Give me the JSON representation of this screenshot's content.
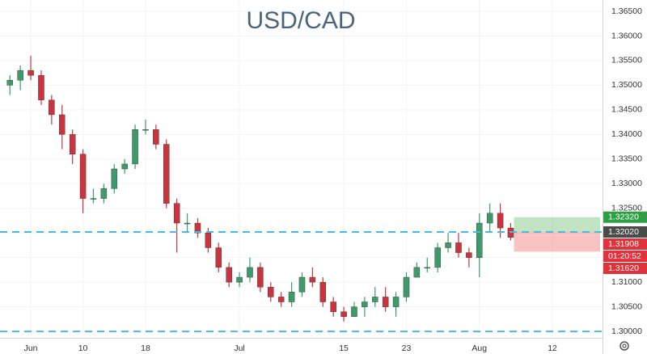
{
  "chart_data": {
    "type": "candlestick",
    "title": "USD/CAD",
    "open": [
      1.35,
      1.351,
      1.353,
      1.352,
      1.347,
      1.344,
      1.34,
      1.336,
      1.327,
      1.327,
      1.329,
      1.333,
      1.334,
      1.341,
      1.341,
      1.338,
      1.326,
      1.322,
      1.322,
      1.32,
      1.317,
      1.313,
      1.31,
      1.311,
      1.313,
      1.309,
      1.307,
      1.306,
      1.308,
      1.311,
      1.31,
      1.306,
      1.304,
      1.303,
      1.305,
      1.306,
      1.307,
      1.305,
      1.307,
      1.311,
      1.313,
      1.313,
      1.317,
      1.318,
      1.316,
      1.315,
      1.322,
      1.324,
      1.321
    ],
    "high": [
      1.352,
      1.354,
      1.356,
      1.353,
      1.348,
      1.346,
      1.341,
      1.337,
      1.329,
      1.33,
      1.334,
      1.335,
      1.342,
      1.343,
      1.342,
      1.339,
      1.327,
      1.324,
      1.323,
      1.321,
      1.318,
      1.314,
      1.312,
      1.315,
      1.314,
      1.31,
      1.308,
      1.31,
      1.312,
      1.313,
      1.311,
      1.307,
      1.305,
      1.306,
      1.307,
      1.309,
      1.309,
      1.308,
      1.312,
      1.314,
      1.315,
      1.318,
      1.32,
      1.32,
      1.317,
      1.324,
      1.326,
      1.326,
      1.322
    ],
    "low": [
      1.348,
      1.349,
      1.351,
      1.346,
      1.342,
      1.337,
      1.334,
      1.324,
      1.326,
      1.326,
      1.328,
      1.332,
      1.333,
      1.34,
      1.337,
      1.325,
      1.316,
      1.32,
      1.319,
      1.316,
      1.312,
      1.309,
      1.309,
      1.31,
      1.308,
      1.306,
      1.305,
      1.305,
      1.307,
      1.309,
      1.305,
      1.303,
      1.302,
      1.303,
      1.303,
      1.305,
      1.304,
      1.303,
      1.306,
      1.311,
      1.312,
      1.312,
      1.316,
      1.315,
      1.313,
      1.311,
      1.32,
      1.319,
      1.3185
    ],
    "close": [
      1.351,
      1.353,
      1.352,
      1.347,
      1.344,
      1.34,
      1.336,
      1.327,
      1.327,
      1.329,
      1.333,
      1.334,
      1.341,
      1.341,
      1.338,
      1.326,
      1.322,
      1.322,
      1.32,
      1.317,
      1.313,
      1.31,
      1.311,
      1.313,
      1.309,
      1.307,
      1.306,
      1.308,
      1.311,
      1.31,
      1.306,
      1.304,
      1.303,
      1.305,
      1.306,
      1.307,
      1.305,
      1.307,
      1.311,
      1.313,
      1.313,
      1.317,
      1.318,
      1.316,
      1.315,
      1.322,
      1.324,
      1.321,
      1.3191
    ],
    "up_color": "#3d9a6b",
    "down_color": "#c9343f",
    "xlim": [
      -0.95,
      56.8
    ],
    "xticks": [
      {
        "value": 2,
        "label": "Jun"
      },
      {
        "value": 7,
        "label": "10"
      },
      {
        "value": 13,
        "label": "18"
      },
      {
        "value": 22,
        "label": "Jul"
      },
      {
        "value": 32,
        "label": "15"
      },
      {
        "value": 38,
        "label": "23"
      },
      {
        "value": 45,
        "label": "Aug"
      },
      {
        "value": 52,
        "label": "12"
      }
    ],
    "ylim": [
      1.2987,
      1.3673
    ],
    "yticks": [
      {
        "value": 1.3,
        "label": "1.30000"
      },
      {
        "value": 1.305,
        "label": "1.30500"
      },
      {
        "value": 1.31,
        "label": "1.31000"
      },
      {
        "value": 1.315,
        "label": "1.31500"
      },
      {
        "value": 1.32,
        "label": "1.32000"
      },
      {
        "value": 1.325,
        "label": "1.32500"
      },
      {
        "value": 1.33,
        "label": "1.33000"
      },
      {
        "value": 1.335,
        "label": "1.33500"
      },
      {
        "value": 1.34,
        "label": "1.34000"
      },
      {
        "value": 1.345,
        "label": "1.34500"
      },
      {
        "value": 1.35,
        "label": "1.35000"
      },
      {
        "value": 1.355,
        "label": "1.35500"
      },
      {
        "value": 1.36,
        "label": "1.36000"
      },
      {
        "value": 1.365,
        "label": "1.36500"
      }
    ],
    "grid": true,
    "hlines": [
      1.3202,
      1.3
    ],
    "hline_color": "#4fb6dc",
    "price_labels": [
      {
        "value": 1.3232,
        "label": "1.32320",
        "color": "#2ea043"
      },
      {
        "value": 1.3202,
        "label": "1.32020",
        "color": "#4a4a4a"
      },
      {
        "value": 1.31908,
        "label": "1.31908",
        "color": "#e0323c"
      },
      {
        "value": 1.3162,
        "label": "1.31620",
        "color": "#e0323c"
      }
    ],
    "countdown": "01:20:52"
  }
}
